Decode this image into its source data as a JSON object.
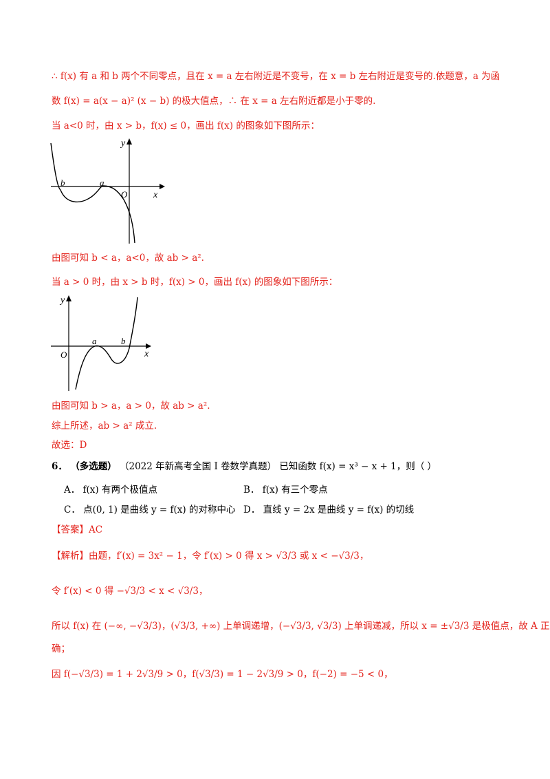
{
  "colors": {
    "solution": "#e4231c",
    "text": "#000000"
  },
  "lines": {
    "l1": "∴ f(x) 有 a 和 b 两个不同零点，且在 x = a 左右附近是不变号，在 x = b 左右附近是变号的.依题意，a 为函",
    "l2": "数 f(x) = a(x − a)² (x − b) 的极大值点，∴ 在 x = a 左右附近都是小于零的.",
    "l3": "当 a<0 时，由 x > b，f(x) ≤ 0，画出 f(x) 的图象如下图所示：",
    "l4": "由图可知 b < a，a<0，故 ab > a².",
    "l5": "当 a > 0 时，由 x > b 时，f(x) > 0，画出 f(x) 的图象如下图所示：",
    "l6": "由图可知 b > a，a > 0，故 ab > a².",
    "l7": "综上所述，ab > a² 成立.",
    "l8": "故选：D"
  },
  "graph1": {
    "y": "y",
    "x": "x",
    "o": "O",
    "b": "b",
    "a": "a"
  },
  "graph2": {
    "y": "y",
    "x": "x",
    "o": "O",
    "a": "a",
    "b": "b"
  },
  "question": {
    "number": "6．",
    "tag": "（多选题）",
    "source": "（2022 年新高考全国 I 卷数学真题）",
    "stem": "已知函数 f(x) = x³ − x + 1，则（    ）",
    "options": {
      "A": "A．  f(x) 有两个极值点",
      "B": "B．  f(x) 有三个零点",
      "C": "C．  点(0, 1) 是曲线 y = f(x) 的对称中心",
      "D": "D．  直线 y = 2x 是曲线 y = f(x) 的切线"
    }
  },
  "answer": "【答案】AC",
  "analysis": {
    "l1": "【解析】由题，f′(x) = 3x² − 1，令 f′(x) > 0 得 x > √3/3 或 x < −√3/3，",
    "l2": "令 f′(x) < 0 得 −√3/3 < x < √3/3，",
    "l3": "所以 f(x) 在 (−∞, −√3/3)，(√3/3, +∞) 上单调递增，(−√3/3, √3/3) 上单调递减，所以 x = ±√3/3 是极值点，故 A 正",
    "l4": "确；",
    "l5": "因 f(−√3/3) = 1 + 2√3/9 > 0，f(√3/3) = 1 − 2√3/9 > 0，f(−2) = −5 < 0，"
  }
}
